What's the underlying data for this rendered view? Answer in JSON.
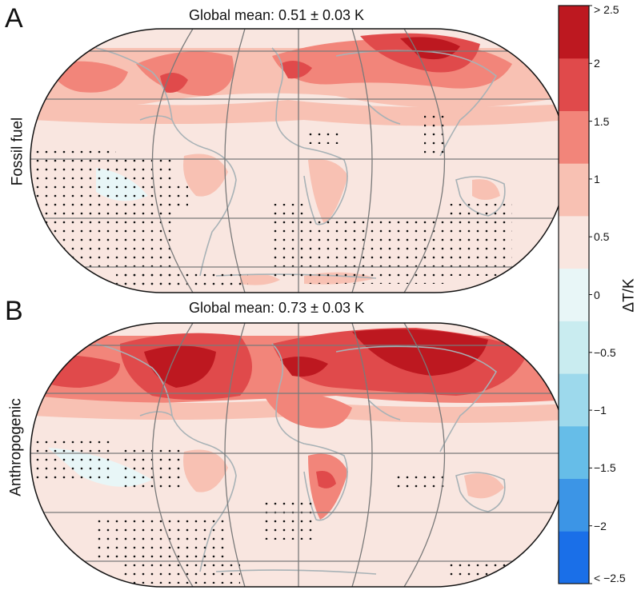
{
  "panels": [
    {
      "letter": "A",
      "title": "Global mean: 0.51 ± 0.03 K",
      "row_label": "Fossil fuel"
    },
    {
      "letter": "B",
      "title": "Global mean: 0.73 ± 0.03 K",
      "row_label": "Anthropogenic"
    }
  ],
  "colorbar": {
    "label": "ΔT/K",
    "ticks": [
      "> 2.5",
      "2",
      "1.5",
      "1",
      "0.5",
      "0",
      "−0.5",
      "−1",
      "−1.5",
      "−2",
      "< −2.5"
    ],
    "bins": [
      "#1a6fe8",
      "#3c95e6",
      "#66bde8",
      "#9dd9ec",
      "#c9ecf0",
      "#e8f6f7",
      "#f9e6e0",
      "#f8c1b3",
      "#f2857a",
      "#e04a4b",
      "#bd1820"
    ]
  },
  "colors": {
    "graticule": "#7a7a7a",
    "coast": "#a8b2b6",
    "ocean_base": "#f9e6e0",
    "stipple": "#111111"
  }
}
